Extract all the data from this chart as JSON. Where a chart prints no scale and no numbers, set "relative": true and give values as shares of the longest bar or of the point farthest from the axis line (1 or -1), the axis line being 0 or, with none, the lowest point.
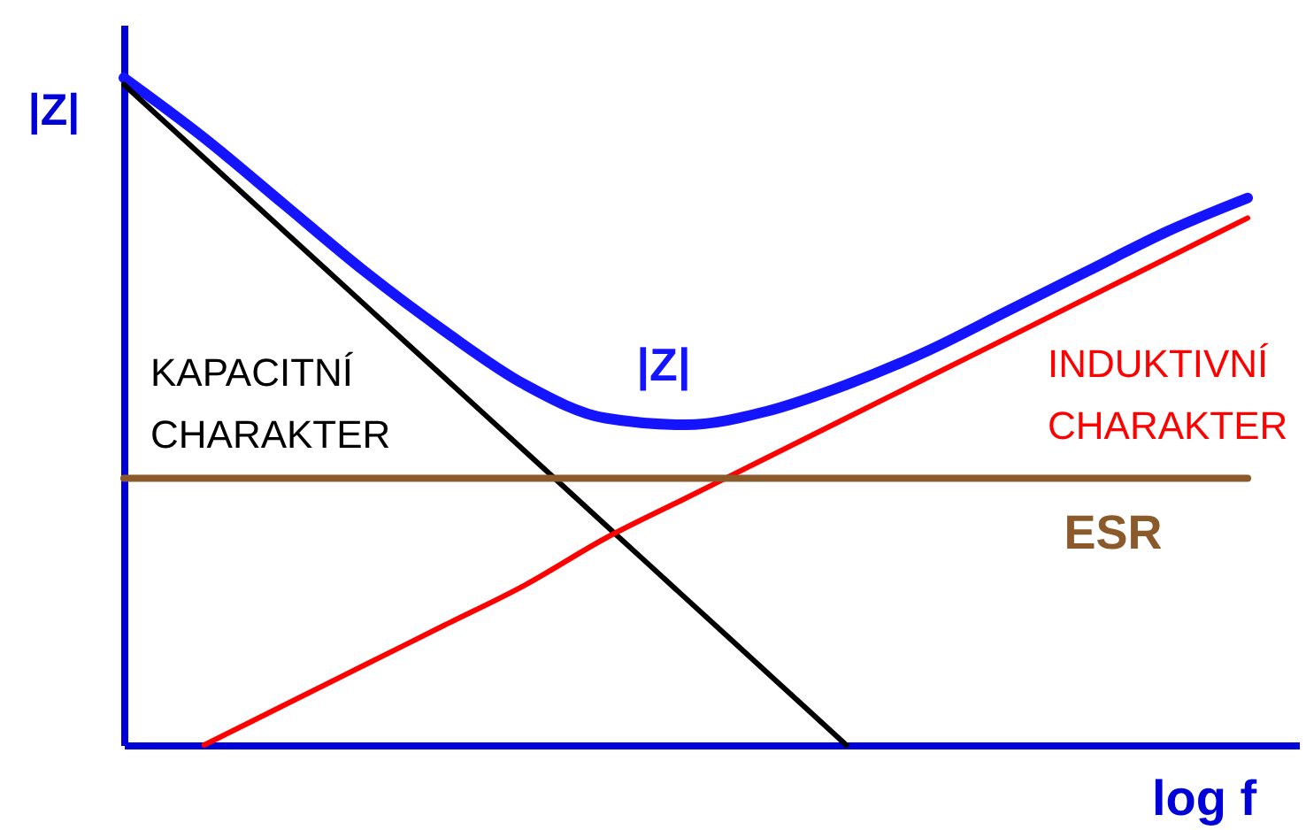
{
  "chart_data": {
    "type": "line",
    "relative": true,
    "xlabel": "log f",
    "ylabel": "|Z|",
    "line_style": "solid",
    "categories": [
      null,
      null,
      null,
      null,
      null,
      null,
      null,
      null,
      null,
      null,
      null,
      null,
      null,
      null,
      null
    ],
    "series": [
      {
        "name": "|Z|",
        "color": "#1414ff",
        "values": [
          1,
          0.91,
          0.81,
          0.71,
          0.62,
          0.54,
          0.49,
          0.48,
          0.5,
          0.54,
          0.59,
          0.65,
          0.71,
          0.77,
          0.82
        ]
      },
      {
        "name": "KAPACITNÍ CHARAKTER",
        "color": "#000000",
        "values": [
          0.99,
          0.88,
          0.77,
          0.66,
          0.55,
          0.44,
          0.33,
          0.22,
          0.11,
          0,
          null,
          null,
          null,
          null,
          null
        ]
      },
      {
        "name": "INDUKTIVNÍ CHARAKTER",
        "color": "#ff0000",
        "values": [
          null,
          0,
          0.06,
          0.12,
          0.18,
          0.24,
          0.31,
          0.37,
          0.43,
          0.49,
          0.55,
          0.61,
          0.67,
          0.73,
          0.79
        ]
      },
      {
        "name": "ESR",
        "color": "#8b5a2b",
        "values": [
          0.4,
          0.4,
          0.4,
          0.4,
          0.4,
          0.4,
          0.4,
          0.4,
          0.4,
          0.4,
          0.4,
          0.4,
          0.4,
          0.4,
          0.4
        ]
      }
    ]
  }
}
